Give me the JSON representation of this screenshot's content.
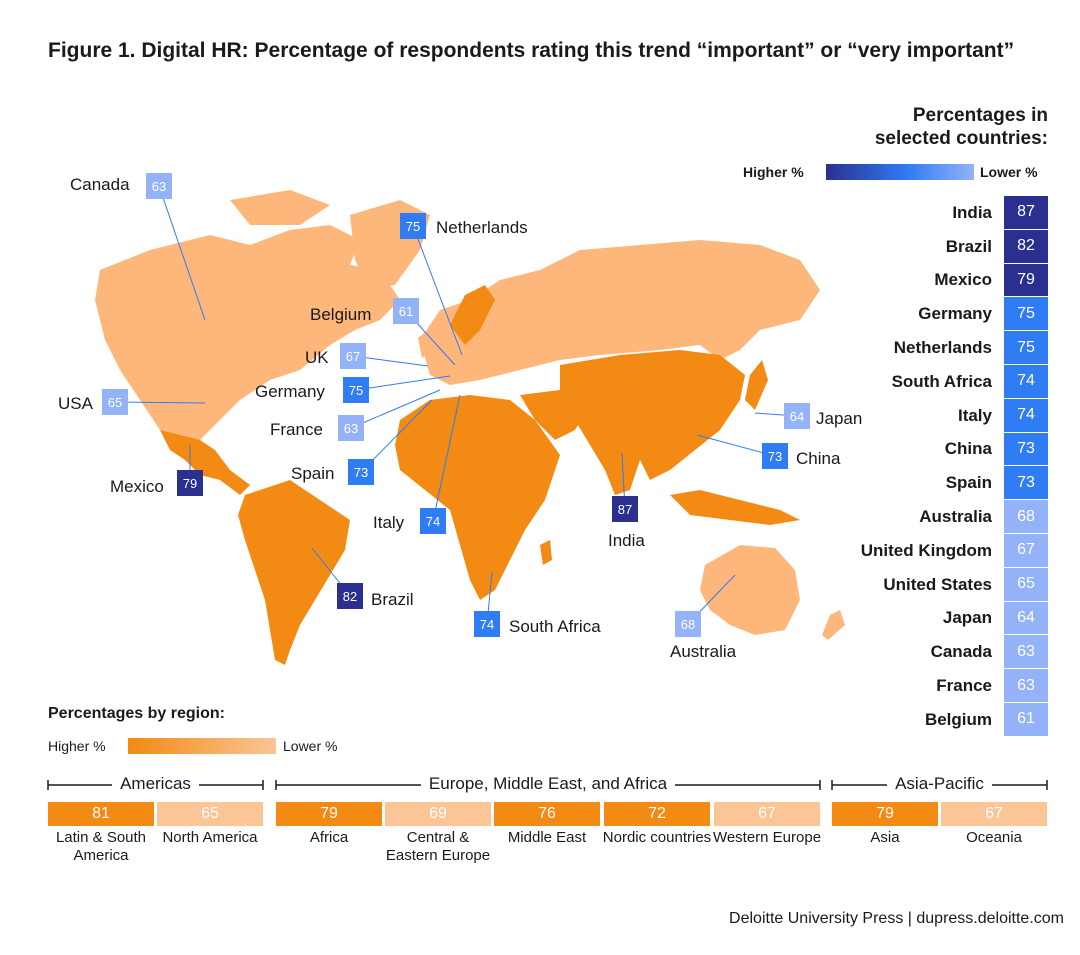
{
  "title": "Figure 1. Digital HR: Percentage of respondents rating this trend “important” or “very important”",
  "colors": {
    "higher_blue": "#2b2f8f",
    "mid_blue": "#2f7cf5",
    "lower_blue": "#93b2f7",
    "higher_orange": "#f28a14",
    "lower_orange": "#fbc595",
    "land_light": "#fdb77b"
  },
  "country_legend": {
    "heading_line1": "Percentages in",
    "heading_line2": "selected countries:",
    "higher_label": "Higher %",
    "lower_label": "Lower %"
  },
  "region_legend": {
    "heading": "Percentages by region:",
    "higher_label": "Higher %",
    "lower_label": "Lower %"
  },
  "chart_data": [
    {
      "type": "table",
      "title": "Percentages in selected countries:",
      "categories": [
        "India",
        "Brazil",
        "Mexico",
        "Germany",
        "Netherlands",
        "South Africa",
        "Italy",
        "China",
        "Spain",
        "Australia",
        "United Kingdom",
        "United States",
        "Japan",
        "Canada",
        "France",
        "Belgium"
      ],
      "values": [
        87,
        82,
        79,
        75,
        75,
        74,
        74,
        73,
        73,
        68,
        67,
        65,
        64,
        63,
        63,
        61
      ]
    },
    {
      "type": "map",
      "labels": [
        {
          "name": "Canada",
          "value": 63
        },
        {
          "name": "Netherlands",
          "value": 75
        },
        {
          "name": "Belgium",
          "value": 61
        },
        {
          "name": "UK",
          "value": 67
        },
        {
          "name": "Germany",
          "value": 75
        },
        {
          "name": "USA",
          "value": 65
        },
        {
          "name": "France",
          "value": 63
        },
        {
          "name": "Spain",
          "value": 73
        },
        {
          "name": "Mexico",
          "value": 79
        },
        {
          "name": "Italy",
          "value": 74
        },
        {
          "name": "India",
          "value": 87
        },
        {
          "name": "China",
          "value": 73
        },
        {
          "name": "Japan",
          "value": 64
        },
        {
          "name": "Brazil",
          "value": 82
        },
        {
          "name": "South Africa",
          "value": 74
        },
        {
          "name": "Australia",
          "value": 68
        }
      ]
    },
    {
      "type": "bar",
      "title": "Percentages by region:",
      "groups": [
        {
          "name": "Americas",
          "regions": [
            {
              "name": "Latin & South America",
              "value": 81
            },
            {
              "name": "North America",
              "value": 65
            }
          ]
        },
        {
          "name": "Europe, Middle East, and Africa",
          "regions": [
            {
              "name": "Africa",
              "value": 79
            },
            {
              "name": "Central & Eastern Europe",
              "value": 69
            },
            {
              "name": "Middle East",
              "value": 76
            },
            {
              "name": "Nordic countries",
              "value": 72
            },
            {
              "name": "Western Europe",
              "value": 67
            }
          ]
        },
        {
          "name": "Asia-Pacific",
          "regions": [
            {
              "name": "Asia",
              "value": 79
            },
            {
              "name": "Oceania",
              "value": 67
            }
          ]
        }
      ]
    }
  ],
  "footer": "Deloitte University Press  |  dupress.deloitte.com"
}
